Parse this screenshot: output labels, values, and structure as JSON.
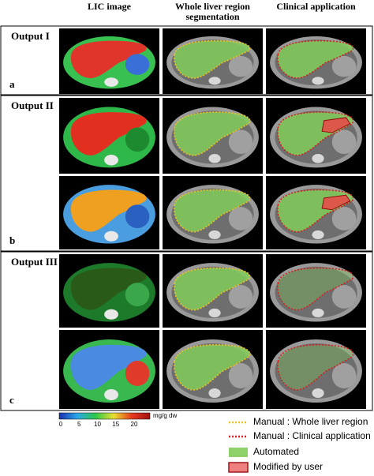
{
  "header": {
    "columns": [
      "LIC image",
      "Whole liver region\nsegmentation",
      "Clinical application"
    ]
  },
  "panels": [
    {
      "label": "Output I",
      "letter": "a"
    },
    {
      "label": "Output II",
      "letter": "b"
    },
    {
      "label": "Output III",
      "letter": "c"
    }
  ],
  "colorbar": {
    "ticks": [
      "0",
      "5",
      "10",
      "15",
      "20"
    ],
    "unit": "mg/g dw"
  },
  "legend": [
    "Manual : Whole liver region",
    "Manual : Clinical application",
    "Automated",
    "Modified by user"
  ]
}
